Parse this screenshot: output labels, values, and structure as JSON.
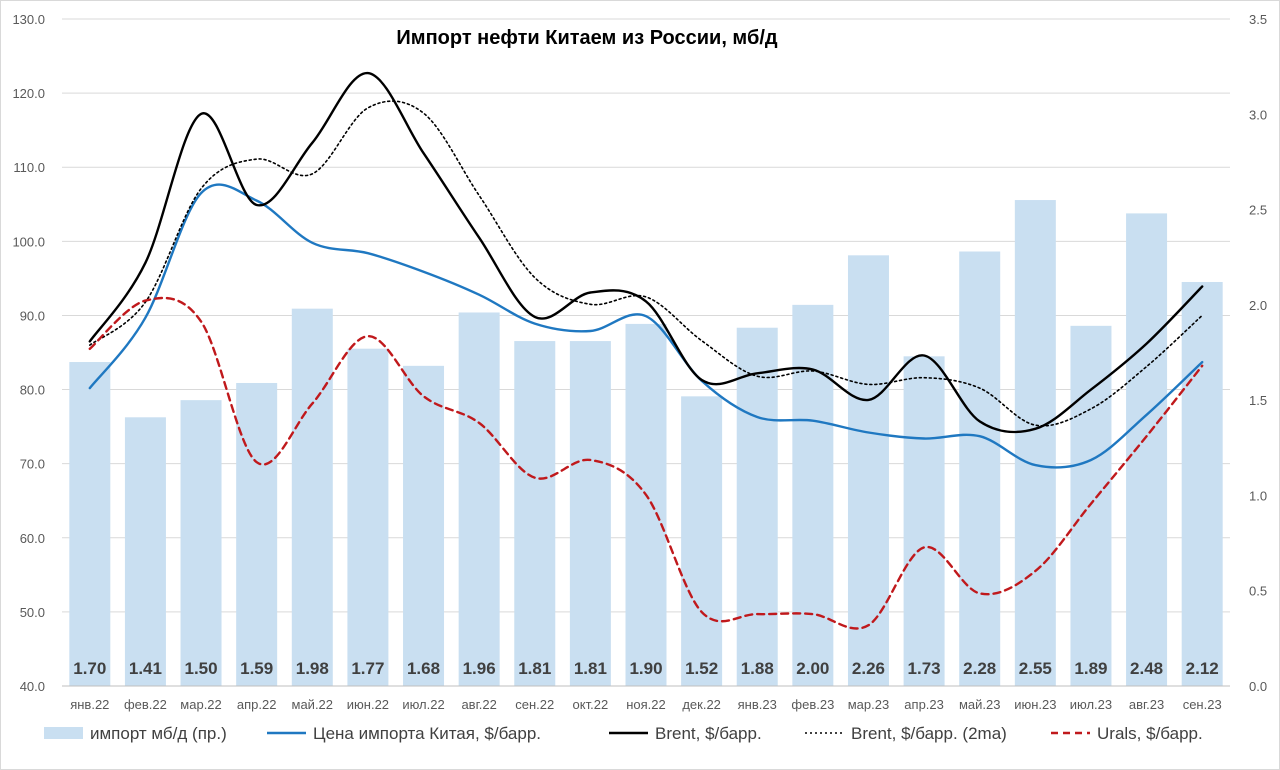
{
  "chart_data": {
    "type": "bar+line",
    "title": "Импорт нефти Китаем из России, мб/д",
    "categories": [
      "янв.22",
      "фев.22",
      "мар.22",
      "апр.22",
      "май.22",
      "июн.22",
      "июл.22",
      "авг.22",
      "сен.22",
      "окт.22",
      "ноя.22",
      "дек.22",
      "янв.23",
      "фев.23",
      "мар.23",
      "апр.23",
      "май.23",
      "июн.23",
      "июл.23",
      "авг.23",
      "сен.23"
    ],
    "y_left": {
      "min": 40,
      "max": 130,
      "ticks": [
        "40.0",
        "50.0",
        "60.0",
        "70.0",
        "80.0",
        "90.0",
        "100.0",
        "110.0",
        "120.0",
        "130.0"
      ]
    },
    "y_right": {
      "min": 0,
      "max": 3.5,
      "ticks": [
        "0.0",
        "0.5",
        "1.0",
        "1.5",
        "2.0",
        "2.5",
        "3.0",
        "3.5"
      ]
    },
    "grid": true,
    "legend_position": "bottom",
    "series": [
      {
        "name": "импорт мб/д (пр.)",
        "kind": "bar",
        "axis": "right",
        "color": "#c9dff1",
        "values": [
          1.7,
          1.41,
          1.5,
          1.59,
          1.98,
          1.77,
          1.68,
          1.96,
          1.81,
          1.81,
          1.9,
          1.52,
          1.88,
          2.0,
          2.26,
          1.73,
          2.28,
          2.55,
          1.89,
          2.48,
          2.12
        ],
        "labels": [
          "1.70",
          "1.41",
          "1.50",
          "1.59",
          "1.98",
          "1.77",
          "1.68",
          "1.96",
          "1.81",
          "1.81",
          "1.90",
          "1.52",
          "1.88",
          "2.00",
          "2.26",
          "1.73",
          "2.28",
          "2.55",
          "1.89",
          "2.48",
          "2.12"
        ]
      },
      {
        "name": "Цена импорта Китая, $/барр.",
        "kind": "line",
        "axis": "left",
        "color": "#1f78c1",
        "dash": "",
        "values": [
          80.2,
          89.7,
          106.5,
          105.5,
          99.8,
          98.4,
          95.9,
          92.8,
          88.9,
          87.9,
          89.9,
          81.2,
          76.3,
          75.8,
          74.2,
          73.4,
          73.7,
          69.8,
          70.5,
          76.6,
          83.7
        ]
      },
      {
        "name": "Brent, $/барр.",
        "kind": "line",
        "axis": "left",
        "color": "#000000",
        "dash": "",
        "values": [
          86.5,
          97.1,
          117.2,
          104.9,
          113.3,
          122.7,
          111.9,
          100.5,
          89.8,
          93.1,
          91.9,
          81.3,
          82.2,
          82.7,
          78.6,
          84.6,
          75.7,
          74.7,
          80.0,
          86.2,
          93.9
        ]
      },
      {
        "name": "Brent, $/барр. (2ma)",
        "kind": "line",
        "axis": "left",
        "color": "#000000",
        "dash": "2,3",
        "values": [
          86.0,
          91.8,
          107.1,
          111.1,
          109.1,
          118.0,
          117.3,
          106.2,
          95.1,
          91.5,
          92.5,
          86.6,
          81.8,
          82.5,
          80.7,
          81.6,
          80.2,
          75.2,
          77.4,
          83.1,
          90.0
        ]
      },
      {
        "name": "Urals, $/барр.",
        "kind": "line",
        "axis": "left",
        "color": "#c0191c",
        "dash": "7,5",
        "values": [
          85.5,
          92.0,
          89.2,
          70.2,
          78.1,
          87.2,
          79.1,
          75.5,
          68.1,
          70.5,
          65.8,
          50.0,
          49.7,
          49.7,
          48.2,
          58.7,
          52.5,
          55.5,
          64.6,
          73.7,
          83.2
        ]
      }
    ]
  }
}
